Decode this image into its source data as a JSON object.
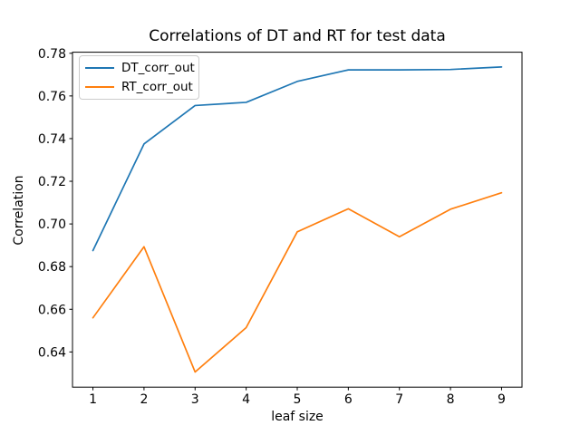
{
  "figure": {
    "background": "#ffffff",
    "text_color": "#000000",
    "axes_frame_color": "#000000",
    "legend_border_color": "#cccccc"
  },
  "chart_data": {
    "type": "line",
    "title": "Correlations of DT and RT for test data",
    "xlabel": "leaf size",
    "ylabel": "Correlation",
    "x": [
      1,
      2,
      3,
      4,
      5,
      6,
      7,
      8,
      9
    ],
    "series": [
      {
        "name": "DT_corr_out",
        "color": "#1f77b4",
        "values": [
          0.6875,
          0.7375,
          0.7555,
          0.757,
          0.7668,
          0.7722,
          0.7722,
          0.7724,
          0.7736
        ]
      },
      {
        "name": "RT_corr_out",
        "color": "#ff7f0e",
        "values": [
          0.656,
          0.6893,
          0.6306,
          0.6514,
          0.6963,
          0.7071,
          0.694,
          0.7069,
          0.7146
        ]
      }
    ],
    "xlim": [
      0.6,
      9.4
    ],
    "ylim": [
      0.6235,
      0.7805
    ],
    "xticks": [
      1,
      2,
      3,
      4,
      5,
      6,
      7,
      8,
      9
    ],
    "yticks": [
      0.64,
      0.66,
      0.68,
      0.7,
      0.72,
      0.74,
      0.76,
      0.78
    ],
    "grid": false,
    "legend_position": "upper left"
  }
}
